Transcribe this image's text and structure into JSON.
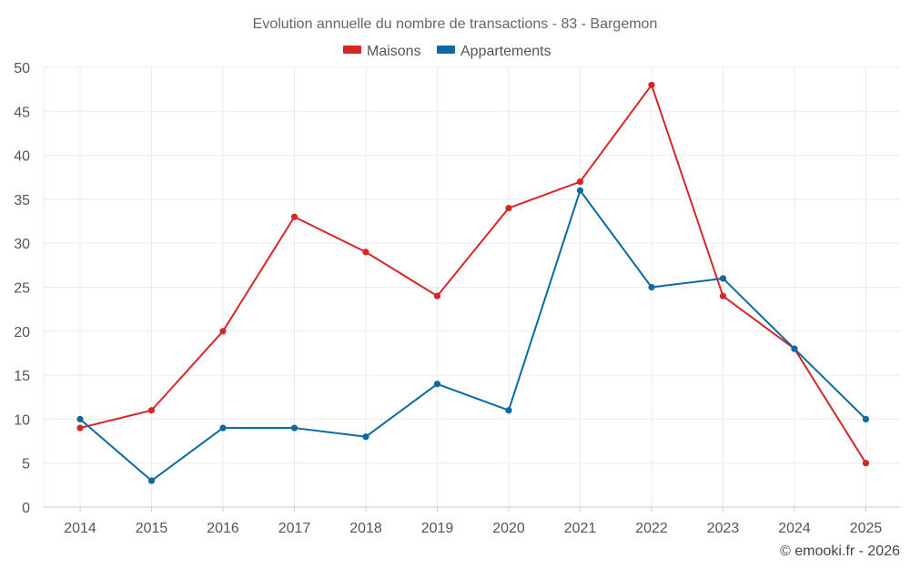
{
  "chart_data": {
    "type": "line",
    "title": "Evolution annuelle du nombre de transactions - 83 - Bargemon",
    "categories": [
      "2014",
      "2015",
      "2016",
      "2017",
      "2018",
      "2019",
      "2020",
      "2021",
      "2022",
      "2023",
      "2024",
      "2025"
    ],
    "series": [
      {
        "name": "Maisons",
        "color": "#d62728",
        "values": [
          9,
          11,
          20,
          33,
          29,
          24,
          34,
          37,
          48,
          24,
          18,
          5
        ]
      },
      {
        "name": "Appartements",
        "color": "#0a6aa1",
        "values": [
          10,
          3,
          9,
          9,
          8,
          14,
          11,
          36,
          25,
          26,
          18,
          10
        ]
      }
    ],
    "ylim": [
      0,
      50
    ],
    "yticks": [
      "0",
      "5",
      "10",
      "15",
      "20",
      "25",
      "30",
      "35",
      "40",
      "45",
      "50"
    ],
    "xlabel": "",
    "ylabel": "",
    "grid": true,
    "legend_position": "top-center"
  },
  "credit": "© emooki.fr - 2026"
}
